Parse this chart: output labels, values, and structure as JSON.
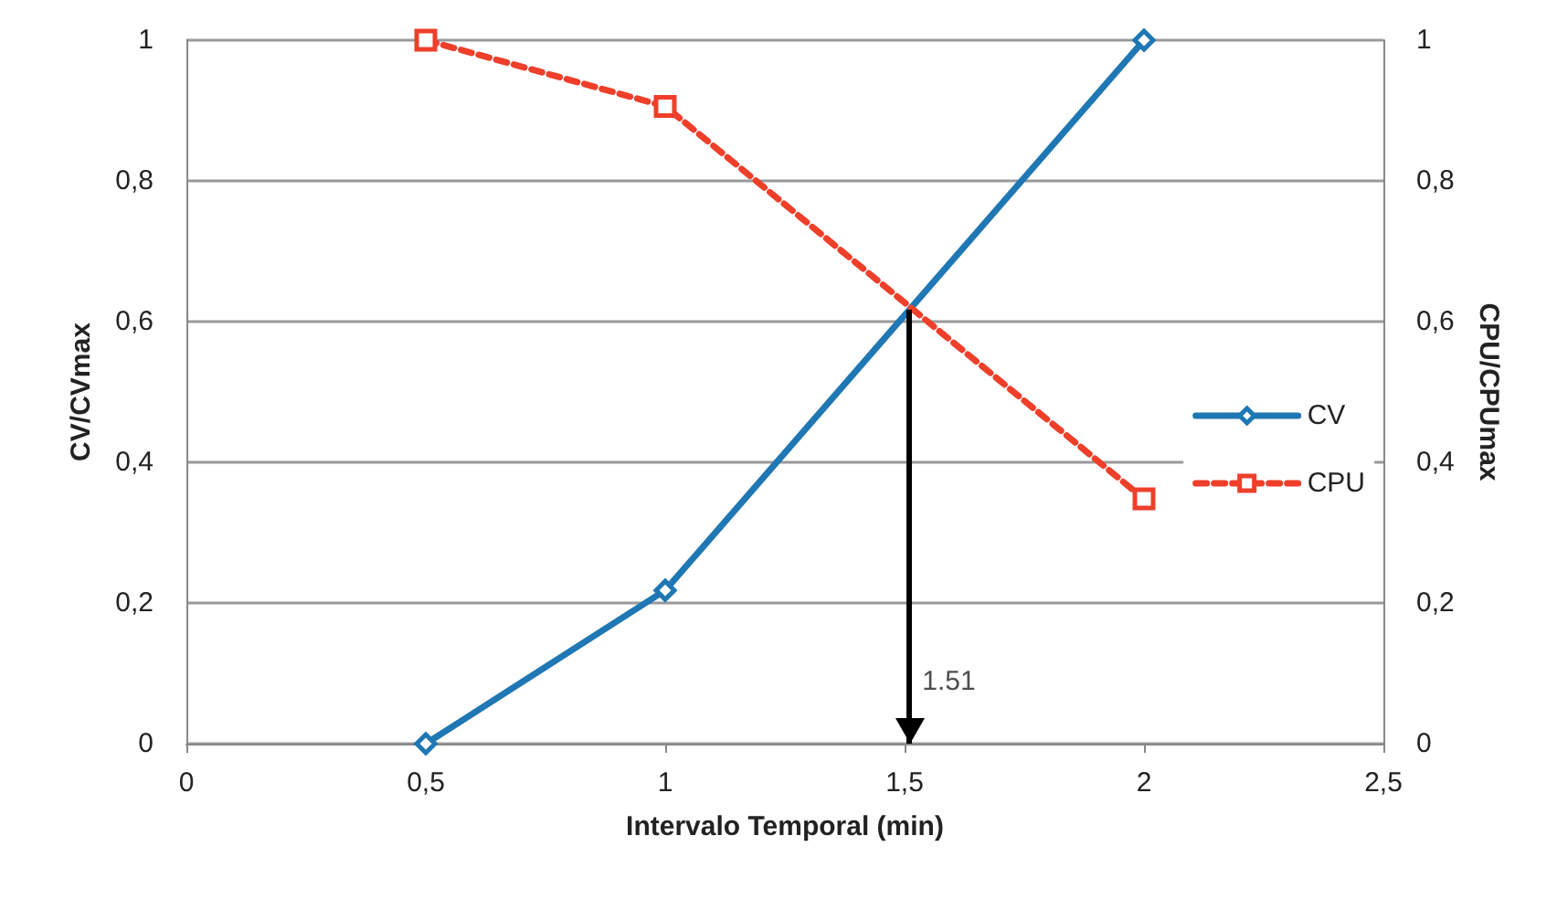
{
  "chart_data": {
    "type": "line",
    "xlabel": "Intervalo Temporal (min)",
    "ylabel": "CV/CVmax",
    "y2label": "CPU/CPUmax",
    "x": [
      0.5,
      1,
      2
    ],
    "series": [
      {
        "name": "CV",
        "color": "#1f77b4",
        "values": [
          0,
          0.218,
          1
        ],
        "marker": "diamond",
        "line_style": "solid"
      },
      {
        "name": "CPU",
        "color": "#ee3f2a",
        "values": [
          1,
          0.906,
          0.348
        ],
        "marker": "square",
        "line_style": "dashed"
      }
    ],
    "xlim": [
      0,
      2.5
    ],
    "xticks": [
      {
        "value": 0,
        "label": "0"
      },
      {
        "value": 0.5,
        "label": "0,5"
      },
      {
        "value": 1,
        "label": "1"
      },
      {
        "value": 1.5,
        "label": "1,5"
      },
      {
        "value": 2,
        "label": "2"
      },
      {
        "value": 2.5,
        "label": "2,5"
      }
    ],
    "ylim": [
      0,
      1
    ],
    "yticks": [
      {
        "value": 0,
        "label": "0"
      },
      {
        "value": 0.2,
        "label": "0,2"
      },
      {
        "value": 0.4,
        "label": "0,4"
      },
      {
        "value": 0.6,
        "label": "0,6"
      },
      {
        "value": 0.8,
        "label": "0,8"
      },
      {
        "value": 1,
        "label": "1"
      }
    ],
    "y2lim": [
      0,
      1
    ],
    "y2ticks": [
      {
        "value": 0,
        "label": "0"
      },
      {
        "value": 0.2,
        "label": "0,2"
      },
      {
        "value": 0.4,
        "label": "0,4"
      },
      {
        "value": 0.6,
        "label": "0,6"
      },
      {
        "value": 0.8,
        "label": "0,8"
      },
      {
        "value": 1,
        "label": "1"
      }
    ],
    "ref_lines": [
      {
        "axis": "x",
        "value": 1.51,
        "label": "1.51",
        "color": "#000000"
      }
    ],
    "grid": "y",
    "legend": "right"
  }
}
